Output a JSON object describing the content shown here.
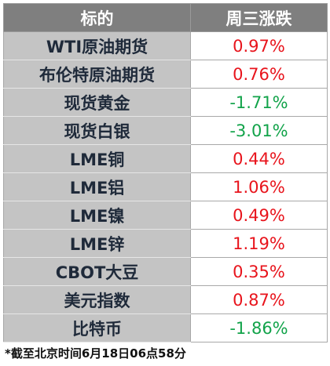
{
  "table": {
    "header": [
      "标的",
      "周三涨跌"
    ],
    "rows": [
      [
        "WTI原油期货",
        "0.97%"
      ],
      [
        "布伦特原油期货",
        "0.76%"
      ],
      [
        "现货黄金",
        "-1.71%"
      ],
      [
        "现货白银",
        "-3.01%"
      ],
      [
        "LME铜",
        "0.44%"
      ],
      [
        "LME铝",
        "1.06%"
      ],
      [
        "LME镍",
        "0.49%"
      ],
      [
        "LME锌",
        "1.19%"
      ],
      [
        "CBOT大豆",
        "0.35%"
      ],
      [
        "美元指数",
        "0.87%"
      ],
      [
        "比特币",
        "-1.86%"
      ]
    ]
  },
  "footnote": "*截至北京时间6月18日06点58分"
}
